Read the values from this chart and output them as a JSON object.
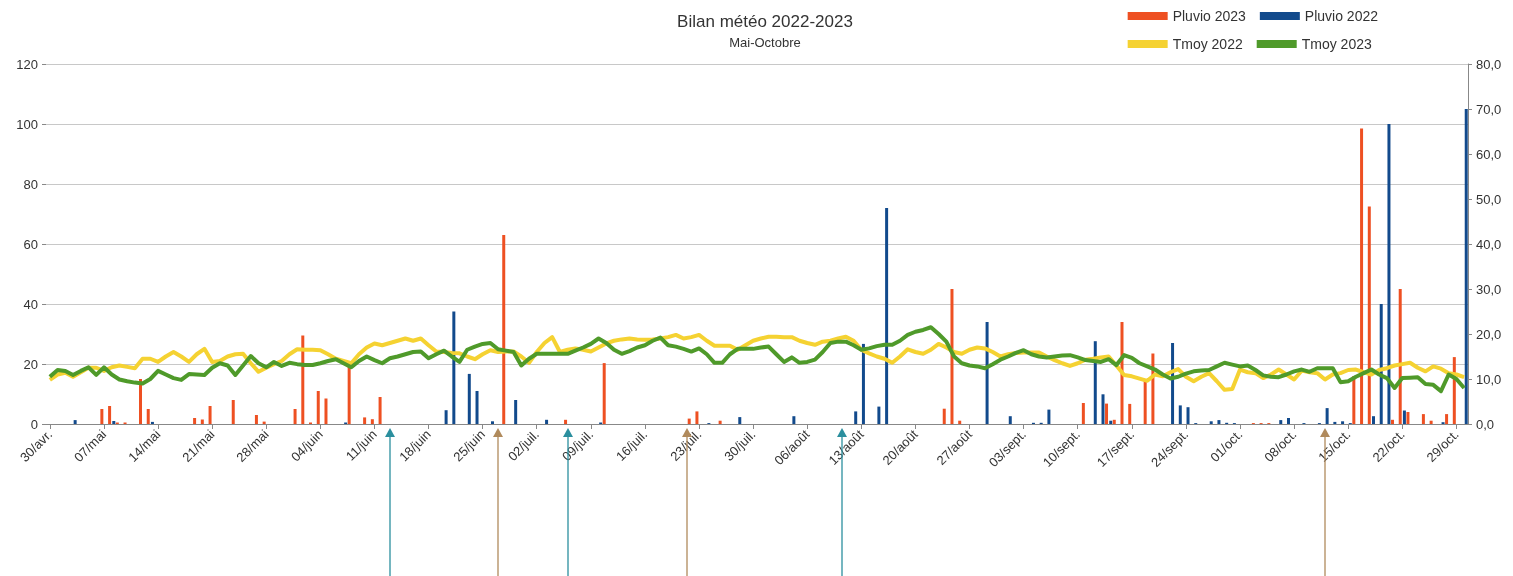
{
  "chart_data": {
    "type": "bar",
    "title": "Bilan météo 2022-2023",
    "subtitle": "Mai-Octobre",
    "categories": [
      "30/avr.",
      null,
      null,
      null,
      null,
      null,
      null,
      "07/mai",
      null,
      null,
      null,
      null,
      null,
      null,
      "14/mai",
      null,
      null,
      null,
      null,
      null,
      null,
      "21/mai",
      null,
      null,
      null,
      null,
      null,
      null,
      "28/mai",
      null,
      null,
      null,
      null,
      null,
      null,
      "04/juin",
      null,
      null,
      null,
      null,
      null,
      null,
      "11/juin",
      null,
      null,
      null,
      null,
      null,
      null,
      "18/juin",
      null,
      null,
      null,
      null,
      null,
      null,
      "25/juin",
      null,
      null,
      null,
      null,
      null,
      null,
      "02/juil.",
      null,
      null,
      null,
      null,
      null,
      null,
      "09/juil.",
      null,
      null,
      null,
      null,
      null,
      null,
      "16/juil.",
      null,
      null,
      null,
      null,
      null,
      null,
      "23/juil.",
      null,
      null,
      null,
      null,
      null,
      null,
      "30/juil.",
      null,
      null,
      null,
      null,
      null,
      null,
      "06/août",
      null,
      null,
      null,
      null,
      null,
      null,
      "13/août",
      null,
      null,
      null,
      null,
      null,
      null,
      "20/août",
      null,
      null,
      null,
      null,
      null,
      null,
      "27/août",
      null,
      null,
      null,
      null,
      null,
      null,
      "03/sept.",
      null,
      null,
      null,
      null,
      null,
      null,
      "10/sept.",
      null,
      null,
      null,
      null,
      null,
      null,
      "17/sept.",
      null,
      null,
      null,
      null,
      null,
      null,
      "24/sept.",
      null,
      null,
      null,
      null,
      null,
      null,
      "01/oct.",
      null,
      null,
      null,
      null,
      null,
      null,
      "08/oct.",
      null,
      null,
      null,
      null,
      null,
      null,
      "15/oct.",
      null,
      null,
      null,
      null,
      null,
      null,
      "22/oct.",
      null,
      null,
      null,
      null,
      null,
      null,
      "29/oct.",
      null
    ],
    "series": [
      {
        "name": "Pluvio 2023",
        "type": "bar",
        "color": "#ee5022",
        "values": [
          0,
          0,
          0,
          0,
          0,
          0,
          0,
          5,
          6,
          0.5,
          0.5,
          0,
          15,
          5,
          0,
          0,
          0,
          0,
          0,
          2,
          1.5,
          6,
          0,
          0,
          8,
          0,
          0,
          3,
          0.8,
          0,
          0,
          0,
          5,
          29.5,
          0.5,
          11,
          8.5,
          0,
          0,
          19,
          0,
          2.2,
          1.6,
          9,
          0,
          0,
          0,
          0,
          0,
          0,
          0,
          0,
          0,
          0,
          0,
          0,
          0,
          0,
          0,
          63,
          0,
          0,
          0,
          0,
          0,
          0,
          0,
          1.4,
          0,
          0,
          0,
          0,
          20.3,
          0,
          0,
          0,
          0,
          0,
          0,
          0,
          0,
          0,
          0,
          1.8,
          4.2,
          0,
          0,
          1.1,
          0,
          0,
          0,
          0,
          0,
          0,
          0,
          0,
          0,
          0,
          0,
          0,
          0,
          0,
          0,
          0,
          0,
          0,
          0,
          0,
          0,
          0,
          0,
          0,
          0,
          0,
          0,
          0,
          5.1,
          45,
          1.1,
          0,
          0,
          0,
          0,
          0,
          0,
          0,
          0,
          0,
          0,
          0,
          0,
          0,
          0,
          0,
          7,
          0,
          0,
          6.8,
          1.4,
          34,
          6.7,
          0,
          15,
          23.5,
          0,
          0,
          0,
          0,
          0,
          0,
          0,
          0,
          0,
          0,
          0,
          0,
          0.3,
          0.3,
          0.3,
          0,
          0,
          0,
          0,
          0,
          0,
          0,
          0,
          0,
          0,
          16,
          98.5,
          72.5,
          0,
          0,
          1.4,
          45,
          4,
          0,
          3.3,
          1.1,
          0,
          3.3,
          22.3,
          0
        ]
      },
      {
        "name": "Pluvio 2022",
        "type": "bar",
        "color": "#124a8c",
        "values": [
          0,
          0,
          0,
          1.3,
          0,
          0,
          0,
          0,
          1,
          0,
          0,
          0,
          0,
          0.7,
          0,
          0,
          0,
          0,
          0,
          0,
          0,
          0,
          0,
          0,
          0,
          0,
          0,
          0,
          0,
          0,
          0,
          0,
          0,
          0,
          0,
          0,
          0,
          0,
          0.5,
          0,
          0,
          0,
          0,
          0,
          0,
          0,
          0,
          0,
          0,
          0,
          0,
          4.6,
          37.5,
          0,
          16.7,
          11,
          0,
          0.9,
          0,
          0,
          8,
          0,
          0,
          0,
          1.4,
          0,
          0,
          0,
          0,
          0,
          0,
          0.5,
          0,
          0,
          0,
          0,
          0,
          0,
          0,
          0,
          0,
          0,
          0,
          0,
          0,
          0.3,
          0,
          0,
          0,
          2.3,
          0,
          0,
          0,
          0,
          0,
          0,
          2.6,
          0,
          0,
          0,
          0,
          0,
          0,
          0,
          4.2,
          26.7,
          0,
          5.8,
          72,
          0,
          0,
          0,
          0,
          0,
          0,
          0,
          0,
          0,
          0,
          0,
          0,
          34,
          0,
          0,
          2.6,
          0,
          0,
          0.4,
          0.4,
          4.8,
          0,
          0,
          0,
          0,
          0,
          27.6,
          9.9,
          1.1,
          0,
          0,
          0,
          0,
          0,
          0,
          0,
          27,
          6.2,
          5.6,
          0.3,
          0,
          0.9,
          1.3,
          0.4,
          0.3,
          0,
          0,
          0,
          0,
          0,
          1.3,
          2,
          0,
          0.3,
          0,
          0.3,
          5.3,
          0.7,
          0.9,
          0.3,
          0,
          0,
          2.6,
          40,
          100,
          0,
          4.5,
          0,
          0,
          0,
          0,
          0.6,
          0,
          0,
          105
        ]
      },
      {
        "name": "Tmoy 2022",
        "type": "line",
        "axis": "y2",
        "color": "#f5d232",
        "values": [
          9.8,
          11,
          11.4,
          10.5,
          11.5,
          12.5,
          12.5,
          11.8,
          12.6,
          13,
          12.7,
          12.4,
          14.5,
          14.5,
          13.8,
          15,
          16,
          15,
          13.8,
          15.5,
          16.7,
          13.8,
          14,
          15,
          15.5,
          15.6,
          13.5,
          11.6,
          12.5,
          13.3,
          14,
          15.5,
          16.6,
          16.5,
          16.5,
          16.4,
          15.5,
          14.5,
          14,
          13.5,
          15.5,
          17,
          17.9,
          17.5,
          18,
          18.5,
          19,
          18.5,
          19,
          17.5,
          16.1,
          16,
          15.8,
          15.7,
          15,
          14.4,
          15.5,
          16.4,
          16,
          16.1,
          16.1,
          15,
          13.6,
          16,
          18,
          19.3,
          16,
          16.5,
          16.8,
          16.5,
          16.1,
          17,
          17.9,
          18.5,
          18.8,
          19,
          18.8,
          18.7,
          18.8,
          19,
          19.3,
          19.8,
          19,
          19.3,
          19.8,
          18.5,
          17.4,
          17.4,
          17.4,
          16.5,
          17.5,
          18.5,
          19,
          19.4,
          19.4,
          19.3,
          19.3,
          18.5,
          18,
          17.6,
          18.3,
          18.5,
          19,
          19.4,
          18.5,
          16.5,
          15.7,
          15,
          14.5,
          13.6,
          15,
          16.6,
          16,
          15.6,
          16.5,
          17.8,
          17,
          16,
          15.6,
          16.5,
          17,
          16.8,
          16,
          15,
          15.5,
          15.8,
          15.9,
          15.9,
          15.9,
          15,
          14.2,
          13.5,
          12.9,
          13.5,
          14.3,
          14.5,
          14.8,
          15,
          13,
          10.9,
          10.6,
          10.1,
          9.6,
          11,
          10.6,
          11.5,
          12.2,
          10.5,
          9.5,
          10.5,
          11.3,
          9.5,
          7.6,
          7.8,
          12.1,
          11.5,
          11.3,
          10.2,
          11,
          12.1,
          11,
          9.9,
          11.9,
          11.5,
          11.3,
          9.9,
          11,
          11.3,
          12,
          12.1,
          11.5,
          11,
          12,
          12.4,
          13,
          13.3,
          13.6,
          12.5,
          11.7,
          12.8,
          12.3,
          11.3,
          11,
          10.4
        ]
      },
      {
        "name": "Tmoy 2023",
        "type": "line",
        "axis": "y2",
        "color": "#4f9a2a",
        "values": [
          10.5,
          12,
          11.8,
          10.9,
          11.8,
          12.6,
          10.9,
          12.6,
          11,
          9.9,
          9.5,
          9.2,
          9,
          10,
          11.8,
          11,
          10.2,
          9.8,
          11.1,
          11,
          10.9,
          12.5,
          13.5,
          13,
          10.9,
          13,
          15.1,
          13.5,
          12.6,
          13.8,
          12.9,
          13.6,
          13.3,
          13.1,
          13.1,
          13.5,
          14,
          14.4,
          13.5,
          12.6,
          14,
          15,
          14.2,
          13.5,
          14.6,
          15,
          15.5,
          16,
          16.1,
          14.6,
          15.5,
          16.3,
          15,
          13.8,
          16.5,
          17.2,
          17.8,
          18,
          16.6,
          16.3,
          16,
          13,
          14.5,
          15.6,
          15.6,
          15.6,
          15.6,
          15.6,
          16.3,
          17,
          17.8,
          19,
          18,
          16.5,
          15.6,
          16.2,
          17,
          17.5,
          18.5,
          19.2,
          17.5,
          17.2,
          16.7,
          16.1,
          16.8,
          15.5,
          13.6,
          13.6,
          15.5,
          16.7,
          16.7,
          16.7,
          17,
          17.2,
          15.5,
          13.8,
          14.8,
          13.6,
          13.8,
          14.3,
          16,
          18,
          18.3,
          18.3,
          17.5,
          16.5,
          16.8,
          17.3,
          17.6,
          17.6,
          18.5,
          19.8,
          20.5,
          20.9,
          21.5,
          20,
          18.3,
          15,
          13.5,
          13,
          12.8,
          12.4,
          13.3,
          14.3,
          15,
          15.8,
          16.4,
          15.5,
          15,
          14.8,
          15,
          15.2,
          15.3,
          14.8,
          14.2,
          14,
          13.8,
          14.4,
          13.1,
          15.3,
          14.7,
          13.5,
          12.8,
          12.1,
          11,
          10.1,
          10.5,
          11.2,
          11.7,
          11.9,
          12,
          12.8,
          13.6,
          13.2,
          12.8,
          13,
          12,
          10.8,
          10.5,
          10.4,
          11,
          11.7,
          12.1,
          11.6,
          12.4,
          12.4,
          12.4,
          9.3,
          9.5,
          10.5,
          11.3,
          12.1,
          11,
          10.2,
          8,
          10.2,
          10.3,
          10.4,
          8.9,
          8.7,
          7.3,
          11,
          10,
          8
        ]
      }
    ],
    "ylim": [
      0,
      120
    ],
    "yticks": [
      0,
      20,
      40,
      60,
      80,
      100,
      120
    ],
    "y2lim": [
      0,
      80
    ],
    "y2ticks": [
      {
        "value": 0,
        "label": "0,0"
      },
      {
        "value": 10,
        "label": "10,0"
      },
      {
        "value": 20,
        "label": "20,0"
      },
      {
        "value": 30,
        "label": "30,0"
      },
      {
        "value": 40,
        "label": "40,0"
      },
      {
        "value": 50,
        "label": "50,0"
      },
      {
        "value": 60,
        "label": "60,0"
      },
      {
        "value": 70,
        "label": "70,0"
      },
      {
        "value": 80,
        "label": "80,0"
      }
    ],
    "grid": "y",
    "legend": "top right",
    "marker": "none"
  }
}
